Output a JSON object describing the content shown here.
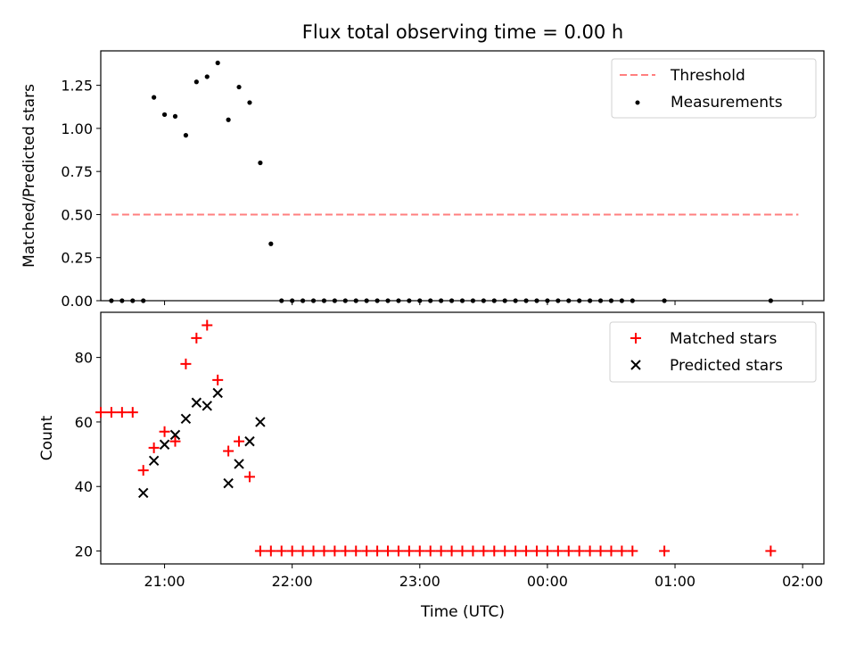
{
  "chart_data": [
    {
      "type": "scatter",
      "title": "Flux total observing time = 0.00 h",
      "xlabel": "",
      "ylabel": "Matched/Predicted stars",
      "ylim": [
        0,
        1.45
      ],
      "xlim": [
        "20:30",
        "02:10"
      ],
      "x_tick_labels": [
        "21:00",
        "22:00",
        "23:00",
        "00:00",
        "01:00",
        "02:00"
      ],
      "y_ticks": [
        0.0,
        0.25,
        0.5,
        0.75,
        1.0,
        1.25
      ],
      "y_tick_labels": [
        "0.00",
        "0.25",
        "0.50",
        "0.75",
        "1.00",
        "1.25"
      ],
      "grid": false,
      "legend": "top-right",
      "threshold": {
        "name": "Threshold",
        "y": 0.5,
        "x_start": "20:35",
        "x_end": "01:58",
        "color": "#ff7f7f"
      },
      "series": [
        {
          "name": "Measurements",
          "color": "#000000",
          "x": [
            "20:35",
            "20:40",
            "20:45",
            "20:50",
            "20:55",
            "21:00",
            "21:05",
            "21:10",
            "21:15",
            "21:20",
            "21:25",
            "21:30",
            "21:35",
            "21:40",
            "21:45",
            "21:50",
            "21:55",
            "22:00",
            "22:05",
            "22:10",
            "22:15",
            "22:20",
            "22:25",
            "22:30",
            "22:35",
            "22:40",
            "22:45",
            "22:50",
            "22:55",
            "23:00",
            "23:05",
            "23:10",
            "23:15",
            "23:20",
            "23:25",
            "23:30",
            "23:35",
            "23:40",
            "23:45",
            "23:50",
            "23:55",
            "00:00",
            "00:05",
            "00:10",
            "00:15",
            "00:20",
            "00:25",
            "00:30",
            "00:35",
            "00:40",
            "00:55",
            "01:45"
          ],
          "values": [
            0,
            0,
            0,
            0,
            1.18,
            1.08,
            1.07,
            0.96,
            1.27,
            1.3,
            1.38,
            1.05,
            1.24,
            1.15,
            0.8,
            0.33,
            0,
            0,
            0,
            0,
            0,
            0,
            0,
            0,
            0,
            0,
            0,
            0,
            0,
            0,
            0,
            0,
            0,
            0,
            0,
            0,
            0,
            0,
            0,
            0,
            0,
            0,
            0,
            0,
            0,
            0,
            0,
            0,
            0,
            0,
            0,
            0
          ]
        }
      ]
    },
    {
      "type": "scatter",
      "title": "",
      "xlabel": "Time (UTC)",
      "ylabel": "Count",
      "ylim": [
        16,
        94
      ],
      "xlim": [
        "20:30",
        "02:10"
      ],
      "x_tick_labels": [
        "21:00",
        "22:00",
        "23:00",
        "00:00",
        "01:00",
        "02:00"
      ],
      "y_ticks": [
        20,
        40,
        60,
        80
      ],
      "y_tick_labels": [
        "20",
        "40",
        "60",
        "80"
      ],
      "grid": false,
      "legend": "top-right",
      "series": [
        {
          "name": "Matched stars",
          "color": "#ff0000",
          "marker": "plus",
          "x": [
            "20:30",
            "20:35",
            "20:40",
            "20:45",
            "20:50",
            "20:55",
            "21:00",
            "21:05",
            "21:10",
            "21:15",
            "21:20",
            "21:25",
            "21:30",
            "21:35",
            "21:40",
            "21:45",
            "21:50",
            "21:55",
            "22:00",
            "22:05",
            "22:10",
            "22:15",
            "22:20",
            "22:25",
            "22:30",
            "22:35",
            "22:40",
            "22:45",
            "22:50",
            "22:55",
            "23:00",
            "23:05",
            "23:10",
            "23:15",
            "23:20",
            "23:25",
            "23:30",
            "23:35",
            "23:40",
            "23:45",
            "23:50",
            "23:55",
            "00:00",
            "00:05",
            "00:10",
            "00:15",
            "00:20",
            "00:25",
            "00:30",
            "00:35",
            "00:40",
            "00:55",
            "01:45"
          ],
          "values": [
            63,
            63,
            63,
            63,
            45,
            52,
            57,
            54,
            78,
            86,
            90,
            73,
            51,
            54,
            43,
            20,
            20,
            20,
            20,
            20,
            20,
            20,
            20,
            20,
            20,
            20,
            20,
            20,
            20,
            20,
            20,
            20,
            20,
            20,
            20,
            20,
            20,
            20,
            20,
            20,
            20,
            20,
            20,
            20,
            20,
            20,
            20,
            20,
            20,
            20,
            20,
            20,
            20
          ]
        },
        {
          "name": "Predicted stars",
          "color": "#000000",
          "marker": "x",
          "x": [
            "20:50",
            "20:55",
            "21:00",
            "21:05",
            "21:10",
            "21:15",
            "21:20",
            "21:25",
            "21:30",
            "21:35",
            "21:40",
            "21:45"
          ],
          "values": [
            38,
            48,
            53,
            56,
            61,
            66,
            65,
            69,
            41,
            47,
            54,
            60
          ]
        }
      ]
    }
  ]
}
